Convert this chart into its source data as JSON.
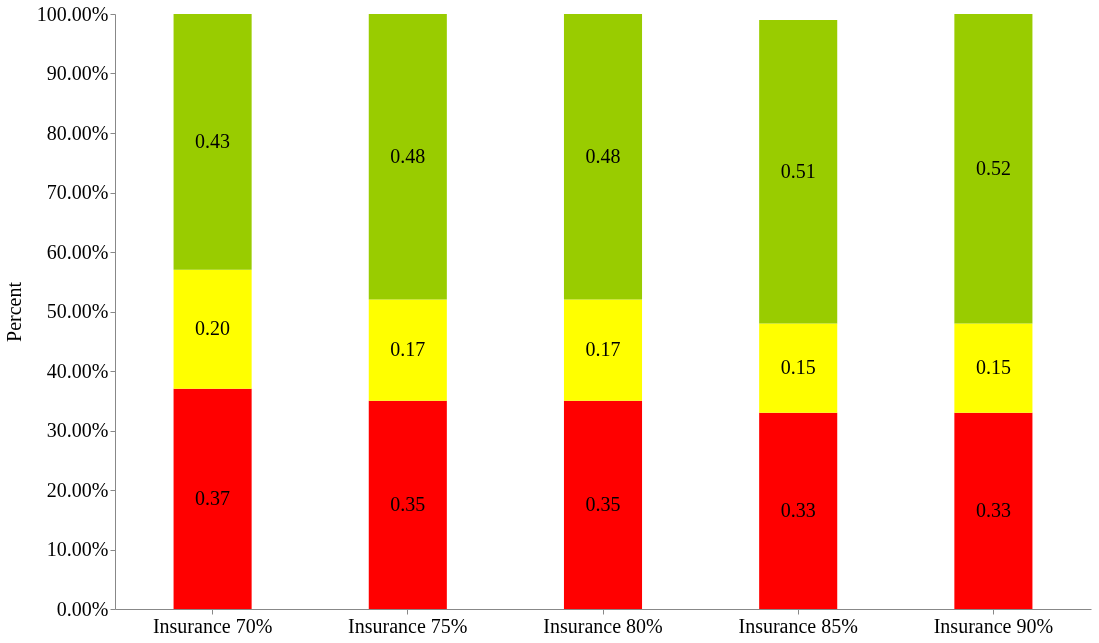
{
  "chart_data": {
    "type": "bar",
    "stacked": true,
    "ylabel": "Percent",
    "categories": [
      "Insurance 70%",
      "Insurance 75%",
      "Insurance 80%",
      "Insurance 85%",
      "Insurance 90%"
    ],
    "series": [
      {
        "color": "#ff0000",
        "values": [
          0.37,
          0.35,
          0.35,
          0.33,
          0.33
        ],
        "value_labels": [
          "0.37",
          "0.35",
          "0.35",
          "0.33",
          "0.33"
        ]
      },
      {
        "color": "#ffff00",
        "values": [
          0.2,
          0.17,
          0.17,
          0.15,
          0.15
        ],
        "value_labels": [
          "0.20",
          "0.17",
          "0.17",
          "0.15",
          "0.15"
        ]
      },
      {
        "color": "#99cc00",
        "values": [
          0.43,
          0.48,
          0.48,
          0.51,
          0.52
        ],
        "value_labels": [
          "0.43",
          "0.48",
          "0.48",
          "0.51",
          "0.52"
        ]
      }
    ],
    "ylim": [
      0,
      1
    ],
    "yticks": [
      {
        "value": 0,
        "label": "0.00%"
      },
      {
        "value": 0.1,
        "label": "10.00%"
      },
      {
        "value": 0.2,
        "label": "20.00%"
      },
      {
        "value": 0.3,
        "label": "30.00%"
      },
      {
        "value": 0.4,
        "label": "40.00%"
      },
      {
        "value": 0.5,
        "label": "50.00%"
      },
      {
        "value": 0.6,
        "label": "60.00%"
      },
      {
        "value": 0.7,
        "label": "70.00%"
      },
      {
        "value": 0.8,
        "label": "80.00%"
      },
      {
        "value": 0.9,
        "label": "90.00%"
      },
      {
        "value": 1,
        "label": "100.00%"
      }
    ],
    "grid": false
  }
}
